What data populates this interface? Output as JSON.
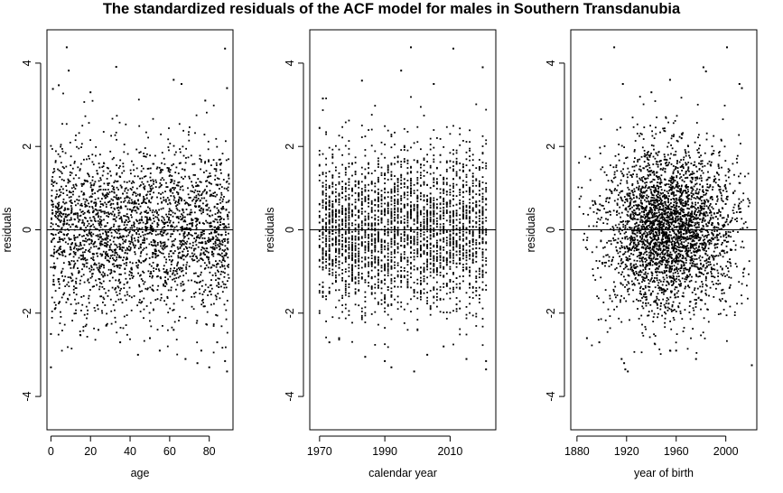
{
  "title": "The standardized residuals of the ACF model for males in Southern Transdanubia",
  "chart_data": [
    {
      "type": "scatter",
      "xlabel": "age",
      "ylabel": "residuals",
      "xlim": [
        -2,
        92
      ],
      "ylim": [
        -4.8,
        4.8
      ],
      "xticks": [
        0,
        20,
        40,
        60,
        80
      ],
      "yticks": [
        -4,
        -2,
        0,
        2,
        4
      ],
      "hline": 0,
      "x_domain": [
        0,
        90
      ],
      "points": [
        [
          8,
          4.38
        ],
        [
          33,
          3.91
        ],
        [
          88,
          4.35
        ],
        [
          1,
          3.38
        ],
        [
          4,
          3.47
        ],
        [
          9,
          3.82
        ],
        [
          62,
          3.6
        ],
        [
          66,
          3.5
        ],
        [
          89,
          3.4
        ],
        [
          20,
          3.3
        ],
        [
          78,
          3.1
        ],
        [
          0,
          -2.5
        ],
        [
          0,
          -3.3
        ],
        [
          2,
          -1.9
        ],
        [
          44,
          -3.0
        ],
        [
          68,
          -3.1
        ],
        [
          74,
          -3.2
        ],
        [
          80,
          -3.3
        ],
        [
          88,
          -3.15
        ],
        [
          89,
          -3.4
        ],
        [
          35,
          -2.7
        ],
        [
          55,
          -2.9
        ],
        [
          62,
          -2.4
        ],
        [
          84,
          -2.7
        ],
        [
          24,
          -2.4
        ],
        [
          28,
          -2.3
        ],
        [
          76,
          -2.9
        ],
        [
          50,
          -2.6
        ]
      ],
      "generated_cloud": {
        "n": 2600,
        "sd": 1.0,
        "seed": 11
      }
    },
    {
      "type": "scatter",
      "xlabel": "calendar year",
      "ylabel": "residuals",
      "xlim": [
        1967,
        2024
      ],
      "ylim": [
        -4.8,
        4.8
      ],
      "xticks": [
        1970,
        1990,
        2010
      ],
      "yticks": [
        -4,
        -2,
        0,
        2,
        4
      ],
      "hline": 0,
      "x_domain": [
        1970,
        2021
      ],
      "points": [
        [
          1998,
          4.38
        ],
        [
          2011,
          4.35
        ],
        [
          2020,
          3.9
        ],
        [
          1983,
          3.58
        ],
        [
          1971,
          3.15
        ],
        [
          1995,
          3.82
        ],
        [
          2005,
          3.5
        ],
        [
          1990,
          -3.15
        ],
        [
          1992,
          -3.3
        ],
        [
          1984,
          -3.05
        ],
        [
          2021,
          -3.15
        ],
        [
          2021,
          -3.35
        ],
        [
          2003,
          -3.0
        ],
        [
          2015,
          -3.1
        ],
        [
          1976,
          -2.6
        ],
        [
          2008,
          -2.8
        ],
        [
          1999,
          -3.4
        ],
        [
          1973,
          -2.7
        ]
      ],
      "generated_cloud": {
        "n": 2800,
        "sd": 0.95,
        "seed": 23
      }
    },
    {
      "type": "scatter",
      "xlabel": "year of birth",
      "ylabel": "residuals",
      "xlim": [
        1875,
        2025
      ],
      "ylim": [
        -4.8,
        4.8
      ],
      "xticks": [
        1880,
        1920,
        1960,
        2000
      ],
      "yticks": [
        -4,
        -2,
        0,
        2,
        4
      ],
      "hline": 0,
      "x_domain": [
        1881,
        2020
      ],
      "points": [
        [
          1910,
          4.38
        ],
        [
          2001,
          4.38
        ],
        [
          1982,
          3.9
        ],
        [
          1984,
          3.8
        ],
        [
          2011,
          3.5
        ],
        [
          2013,
          3.4
        ],
        [
          1917,
          3.5
        ],
        [
          1955,
          3.6
        ],
        [
          1940,
          3.3
        ],
        [
          2021,
          -3.25
        ],
        [
          1918,
          -3.2
        ],
        [
          1919,
          -3.35
        ],
        [
          1921,
          -3.4
        ],
        [
          1916,
          -3.1
        ],
        [
          1955,
          -2.9
        ],
        [
          1976,
          -3.1
        ],
        [
          1888,
          -2.6
        ],
        [
          1898,
          -2.7
        ],
        [
          1960,
          -2.9
        ]
      ],
      "generated_cloud": {
        "n": 3200,
        "sd": 1.0,
        "seed": 37,
        "center": 1955,
        "spread": 26
      }
    }
  ]
}
